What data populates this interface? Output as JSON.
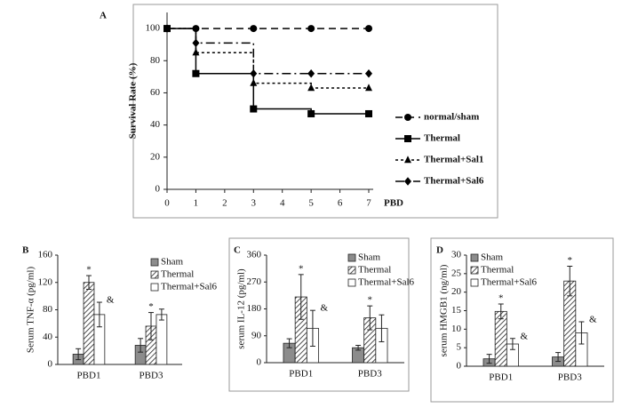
{
  "chart_data": [
    {
      "type": "line",
      "label": "A",
      "y_label": "Survival Rate (%)",
      "x_label": "PBD",
      "x": [
        0,
        1,
        3,
        5,
        7
      ],
      "xlim": [
        0,
        7
      ],
      "xticks": [
        0,
        1,
        2,
        3,
        4,
        5,
        6,
        7
      ],
      "ylim": [
        0,
        110
      ],
      "yticks": [
        0,
        20,
        40,
        60,
        80,
        100
      ],
      "series": [
        {
          "name": "normal/sham",
          "color": "#000000",
          "marker": "circle",
          "linestyle": "dashed",
          "values": [
            100,
            100,
            100,
            100,
            100
          ]
        },
        {
          "name": "Thermal",
          "color": "#000000",
          "marker": "square",
          "linestyle": "solid",
          "values": [
            100,
            72,
            50,
            47,
            47
          ]
        },
        {
          "name": "Thermal+Sal1",
          "color": "#000000",
          "marker": "triangle",
          "linestyle": "dotted",
          "values": [
            100,
            85,
            66,
            63,
            63
          ]
        },
        {
          "name": "Thermal+Sal6",
          "color": "#000000",
          "marker": "diamond",
          "linestyle": "dashdot",
          "values": [
            100,
            91,
            72,
            72,
            72
          ]
        }
      ]
    },
    {
      "type": "bar",
      "label": "B",
      "y_label": "Serum TNF-α (pg/ml)",
      "categories": [
        "PBD1",
        "PBD3"
      ],
      "ylim": [
        0,
        160
      ],
      "yticks": [
        0,
        40,
        80,
        120,
        160
      ],
      "series": [
        {
          "name": "Sham",
          "color": "#8c8c8c",
          "hatch": false,
          "values": [
            15,
            28
          ],
          "errors": [
            8,
            10
          ],
          "annotations": [
            null,
            null
          ]
        },
        {
          "name": "Thermal",
          "color": "#ffffff",
          "hatch": true,
          "values": [
            120,
            56
          ],
          "errors": [
            10,
            20
          ],
          "annotations": [
            "*",
            "*"
          ]
        },
        {
          "name": "Thermal+Sal6",
          "color": "#ffffff",
          "hatch": false,
          "values": [
            73,
            73
          ],
          "errors": [
            18,
            8
          ],
          "annotations": [
            "&",
            null
          ]
        }
      ]
    },
    {
      "type": "bar",
      "label": "C",
      "y_label": "serum IL-12 (pg/ml)",
      "categories": [
        "PBD1",
        "PBD3"
      ],
      "ylim": [
        0,
        360
      ],
      "yticks": [
        0,
        90,
        180,
        270,
        360
      ],
      "series": [
        {
          "name": "Sham",
          "color": "#8c8c8c",
          "hatch": false,
          "values": [
            65,
            50
          ],
          "errors": [
            15,
            8
          ],
          "annotations": [
            null,
            null
          ]
        },
        {
          "name": "Thermal",
          "color": "#ffffff",
          "hatch": true,
          "values": [
            220,
            150
          ],
          "errors": [
            75,
            40
          ],
          "annotations": [
            "*",
            "*"
          ]
        },
        {
          "name": "Thermal+Sal6",
          "color": "#ffffff",
          "hatch": false,
          "values": [
            115,
            115
          ],
          "errors": [
            60,
            45
          ],
          "annotations": [
            "&",
            null
          ]
        }
      ]
    },
    {
      "type": "bar",
      "label": "D",
      "y_label": "serum HMGB1 (ng/ml)",
      "categories": [
        "PBD1",
        "PBD3"
      ],
      "ylim": [
        0,
        30
      ],
      "yticks": [
        0,
        5,
        10,
        15,
        20,
        25,
        30
      ],
      "series": [
        {
          "name": "Sham",
          "color": "#8c8c8c",
          "hatch": false,
          "values": [
            2,
            2.5
          ],
          "errors": [
            1.2,
            1.2
          ],
          "annotations": [
            null,
            null
          ]
        },
        {
          "name": "Thermal",
          "color": "#ffffff",
          "hatch": true,
          "values": [
            14.8,
            23
          ],
          "errors": [
            2,
            4
          ],
          "annotations": [
            "*",
            "*"
          ]
        },
        {
          "name": "Thermal+Sal6",
          "color": "#ffffff",
          "hatch": false,
          "values": [
            6,
            9
          ],
          "errors": [
            1.5,
            3
          ],
          "annotations": [
            "&",
            "&"
          ]
        }
      ]
    }
  ]
}
